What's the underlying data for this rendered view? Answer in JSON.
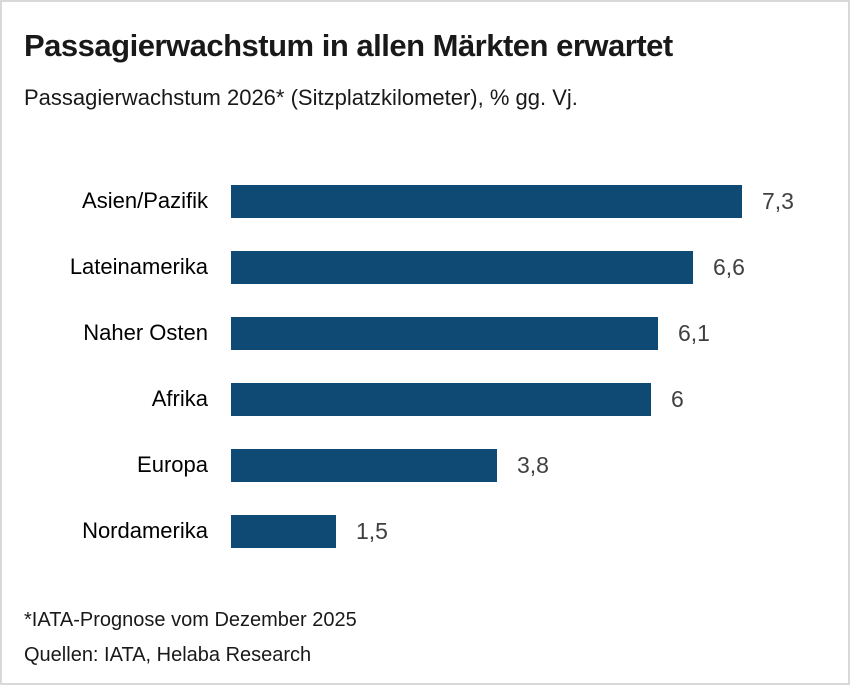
{
  "chart_data": {
    "type": "bar",
    "orientation": "horizontal",
    "title": "Passagierwachstum in allen Märkten erwartet",
    "subtitle": "Passagierwachstum 2026* (Sitzplatzkilometer), % gg. Vj.",
    "categories": [
      "Asien/Pazifik",
      "Lateinamerika",
      "Naher Osten",
      "Afrika",
      "Europa",
      "Nordamerika"
    ],
    "values": [
      7.3,
      6.6,
      6.1,
      6,
      3.8,
      1.5
    ],
    "value_labels": [
      "7,3",
      "6,6",
      "6,1",
      "6",
      "3,8",
      "1,5"
    ],
    "xlim": [
      0,
      7.3
    ],
    "grid": false,
    "legend": "none",
    "bar_color": "#0e4a73",
    "value_label_color": "#404040",
    "footnote": "*IATA-Prognose vom Dezember 2025",
    "source": "Quellen: IATA, Helaba Research"
  }
}
